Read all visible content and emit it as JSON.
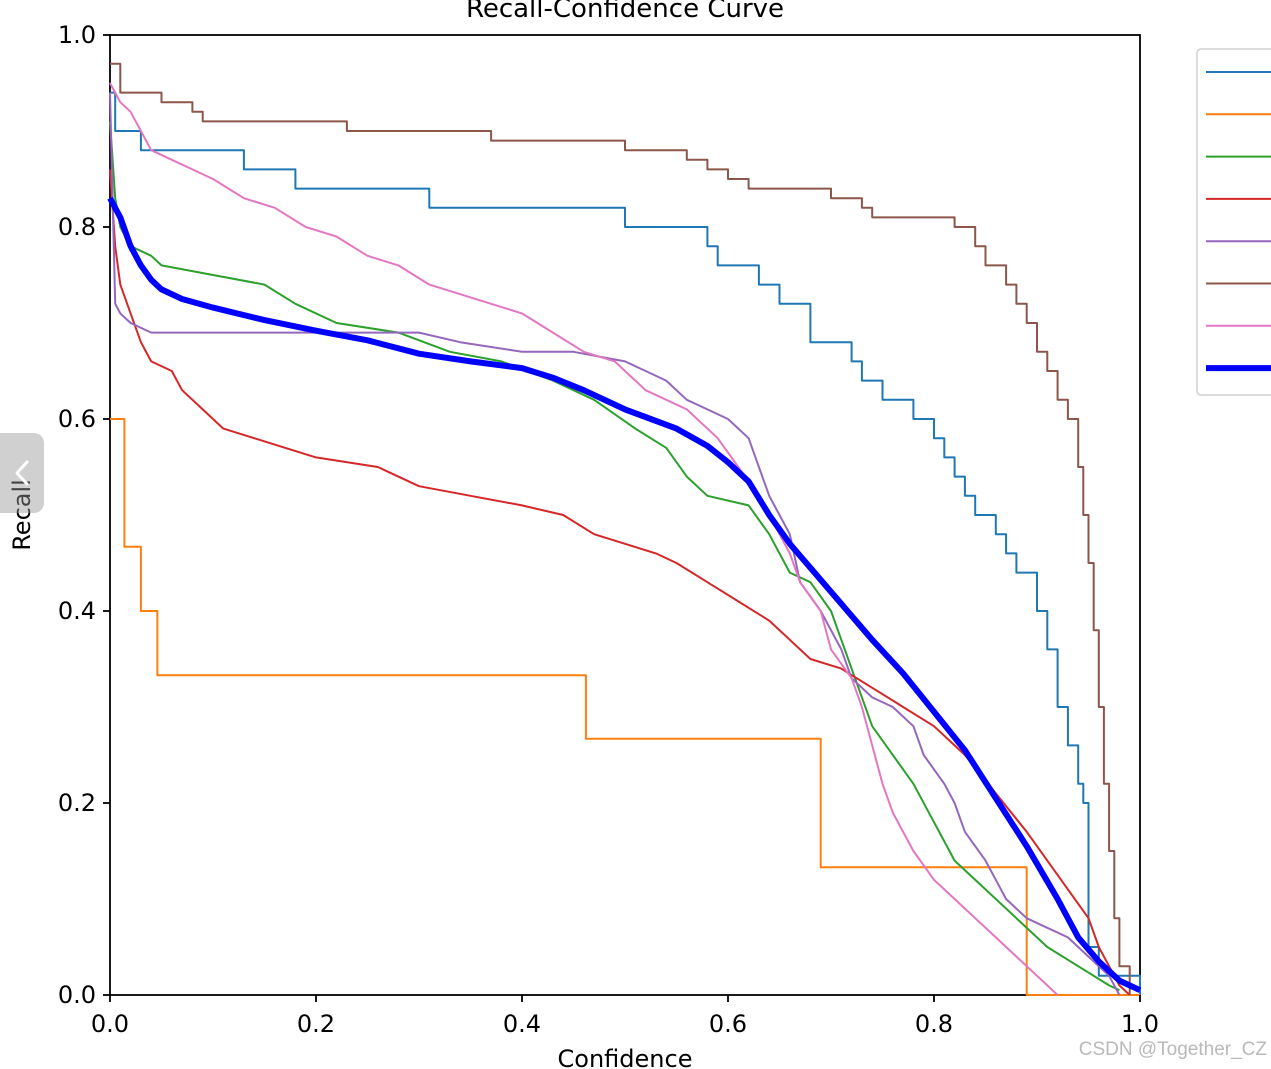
{
  "chart_data": {
    "type": "line",
    "title": "Recall-Confidence Curve",
    "xlabel": "Confidence",
    "ylabel": "Recall",
    "xlim": [
      0,
      1
    ],
    "ylim": [
      0,
      1
    ],
    "xticks": [
      "0.0",
      "0.2",
      "0.4",
      "0.6",
      "0.8",
      "1.0"
    ],
    "yticks": [
      "0.0",
      "0.2",
      "0.4",
      "0.6",
      "0.8",
      "1.0"
    ],
    "grid": false,
    "legend_location": "upper right (clipped, labels not visible)",
    "series": [
      {
        "color": "#1f77b4",
        "width": 2,
        "step": true,
        "points": [
          [
            0,
            0.94
          ],
          [
            0.005,
            0.9
          ],
          [
            0.03,
            0.88
          ],
          [
            0.13,
            0.86
          ],
          [
            0.18,
            0.84
          ],
          [
            0.31,
            0.82
          ],
          [
            0.5,
            0.8
          ],
          [
            0.58,
            0.78
          ],
          [
            0.59,
            0.76
          ],
          [
            0.63,
            0.74
          ],
          [
            0.65,
            0.72
          ],
          [
            0.68,
            0.68
          ],
          [
            0.72,
            0.66
          ],
          [
            0.73,
            0.64
          ],
          [
            0.75,
            0.62
          ],
          [
            0.78,
            0.6
          ],
          [
            0.8,
            0.58
          ],
          [
            0.81,
            0.56
          ],
          [
            0.82,
            0.54
          ],
          [
            0.83,
            0.52
          ],
          [
            0.84,
            0.5
          ],
          [
            0.86,
            0.48
          ],
          [
            0.87,
            0.46
          ],
          [
            0.88,
            0.44
          ],
          [
            0.9,
            0.4
          ],
          [
            0.91,
            0.36
          ],
          [
            0.92,
            0.3
          ],
          [
            0.93,
            0.26
          ],
          [
            0.94,
            0.22
          ],
          [
            0.945,
            0.2
          ],
          [
            0.95,
            0.12
          ],
          [
            0.95,
            0.05
          ],
          [
            0.96,
            0.02
          ],
          [
            1.0,
            0.0
          ]
        ]
      },
      {
        "color": "#ff7f0e",
        "width": 2,
        "step": true,
        "points": [
          [
            0,
            0.6
          ],
          [
            0.014,
            0.467
          ],
          [
            0.03,
            0.4
          ],
          [
            0.046,
            0.333
          ],
          [
            0.444,
            0.333
          ],
          [
            0.462,
            0.267
          ],
          [
            0.63,
            0.267
          ],
          [
            0.69,
            0.133
          ],
          [
            0.85,
            0.133
          ],
          [
            0.89,
            0.067
          ],
          [
            0.89,
            0.0
          ],
          [
            1.0,
            0.0
          ]
        ]
      },
      {
        "color": "#2ca02c",
        "width": 2,
        "step": false,
        "points": [
          [
            0,
            0.91
          ],
          [
            0.005,
            0.83
          ],
          [
            0.01,
            0.8
          ],
          [
            0.02,
            0.78
          ],
          [
            0.04,
            0.77
          ],
          [
            0.05,
            0.76
          ],
          [
            0.1,
            0.75
          ],
          [
            0.15,
            0.74
          ],
          [
            0.18,
            0.72
          ],
          [
            0.22,
            0.7
          ],
          [
            0.28,
            0.69
          ],
          [
            0.33,
            0.67
          ],
          [
            0.38,
            0.66
          ],
          [
            0.43,
            0.64
          ],
          [
            0.47,
            0.62
          ],
          [
            0.51,
            0.59
          ],
          [
            0.54,
            0.57
          ],
          [
            0.56,
            0.54
          ],
          [
            0.58,
            0.52
          ],
          [
            0.62,
            0.51
          ],
          [
            0.64,
            0.48
          ],
          [
            0.66,
            0.44
          ],
          [
            0.68,
            0.43
          ],
          [
            0.7,
            0.4
          ],
          [
            0.72,
            0.34
          ],
          [
            0.74,
            0.28
          ],
          [
            0.76,
            0.25
          ],
          [
            0.78,
            0.22
          ],
          [
            0.8,
            0.18
          ],
          [
            0.82,
            0.14
          ],
          [
            0.85,
            0.11
          ],
          [
            0.88,
            0.08
          ],
          [
            0.91,
            0.05
          ],
          [
            0.94,
            0.03
          ],
          [
            0.97,
            0.01
          ],
          [
            0.98,
            0.005
          ]
        ]
      },
      {
        "color": "#d62728",
        "width": 2,
        "step": false,
        "points": [
          [
            0,
            0.86
          ],
          [
            0.005,
            0.78
          ],
          [
            0.01,
            0.74
          ],
          [
            0.02,
            0.71
          ],
          [
            0.03,
            0.68
          ],
          [
            0.04,
            0.66
          ],
          [
            0.06,
            0.65
          ],
          [
            0.07,
            0.63
          ],
          [
            0.09,
            0.61
          ],
          [
            0.11,
            0.59
          ],
          [
            0.14,
            0.58
          ],
          [
            0.17,
            0.57
          ],
          [
            0.2,
            0.56
          ],
          [
            0.26,
            0.55
          ],
          [
            0.3,
            0.53
          ],
          [
            0.35,
            0.52
          ],
          [
            0.4,
            0.51
          ],
          [
            0.44,
            0.5
          ],
          [
            0.47,
            0.48
          ],
          [
            0.5,
            0.47
          ],
          [
            0.53,
            0.46
          ],
          [
            0.55,
            0.45
          ],
          [
            0.58,
            0.43
          ],
          [
            0.61,
            0.41
          ],
          [
            0.64,
            0.39
          ],
          [
            0.66,
            0.37
          ],
          [
            0.68,
            0.35
          ],
          [
            0.71,
            0.34
          ],
          [
            0.74,
            0.32
          ],
          [
            0.77,
            0.3
          ],
          [
            0.8,
            0.28
          ],
          [
            0.83,
            0.25
          ],
          [
            0.86,
            0.21
          ],
          [
            0.89,
            0.17
          ],
          [
            0.91,
            0.14
          ],
          [
            0.93,
            0.11
          ],
          [
            0.95,
            0.08
          ],
          [
            0.96,
            0.05
          ],
          [
            0.97,
            0.03
          ],
          [
            0.98,
            0.01
          ],
          [
            0.99,
            0.0
          ]
        ]
      },
      {
        "color": "#9467bd",
        "width": 2,
        "step": false,
        "points": [
          [
            0,
            0.94
          ],
          [
            0.005,
            0.72
          ],
          [
            0.01,
            0.71
          ],
          [
            0.02,
            0.7
          ],
          [
            0.04,
            0.69
          ],
          [
            0.3,
            0.69
          ],
          [
            0.34,
            0.68
          ],
          [
            0.4,
            0.67
          ],
          [
            0.45,
            0.67
          ],
          [
            0.5,
            0.66
          ],
          [
            0.52,
            0.65
          ],
          [
            0.54,
            0.64
          ],
          [
            0.56,
            0.62
          ],
          [
            0.58,
            0.61
          ],
          [
            0.6,
            0.6
          ],
          [
            0.62,
            0.58
          ],
          [
            0.63,
            0.55
          ],
          [
            0.64,
            0.52
          ],
          [
            0.66,
            0.48
          ],
          [
            0.67,
            0.43
          ],
          [
            0.69,
            0.4
          ],
          [
            0.71,
            0.36
          ],
          [
            0.72,
            0.33
          ],
          [
            0.74,
            0.31
          ],
          [
            0.76,
            0.3
          ],
          [
            0.78,
            0.28
          ],
          [
            0.79,
            0.25
          ],
          [
            0.81,
            0.22
          ],
          [
            0.82,
            0.2
          ],
          [
            0.83,
            0.17
          ],
          [
            0.85,
            0.14
          ],
          [
            0.86,
            0.12
          ],
          [
            0.87,
            0.1
          ],
          [
            0.89,
            0.08
          ],
          [
            0.91,
            0.07
          ],
          [
            0.93,
            0.06
          ],
          [
            0.95,
            0.04
          ],
          [
            0.97,
            0.02
          ],
          [
            0.98,
            0.0
          ]
        ]
      },
      {
        "color": "#8c564b",
        "width": 2,
        "step": true,
        "points": [
          [
            0,
            0.97
          ],
          [
            0.01,
            0.94
          ],
          [
            0.05,
            0.93
          ],
          [
            0.08,
            0.92
          ],
          [
            0.09,
            0.91
          ],
          [
            0.23,
            0.9
          ],
          [
            0.37,
            0.89
          ],
          [
            0.5,
            0.88
          ],
          [
            0.56,
            0.87
          ],
          [
            0.58,
            0.86
          ],
          [
            0.6,
            0.85
          ],
          [
            0.62,
            0.84
          ],
          [
            0.7,
            0.83
          ],
          [
            0.73,
            0.82
          ],
          [
            0.74,
            0.81
          ],
          [
            0.82,
            0.8
          ],
          [
            0.84,
            0.78
          ],
          [
            0.85,
            0.76
          ],
          [
            0.87,
            0.74
          ],
          [
            0.88,
            0.72
          ],
          [
            0.89,
            0.7
          ],
          [
            0.9,
            0.67
          ],
          [
            0.91,
            0.65
          ],
          [
            0.92,
            0.62
          ],
          [
            0.93,
            0.6
          ],
          [
            0.94,
            0.55
          ],
          [
            0.945,
            0.5
          ],
          [
            0.95,
            0.45
          ],
          [
            0.955,
            0.38
          ],
          [
            0.96,
            0.3
          ],
          [
            0.965,
            0.22
          ],
          [
            0.97,
            0.15
          ],
          [
            0.975,
            0.08
          ],
          [
            0.98,
            0.03
          ],
          [
            0.99,
            0.0
          ]
        ]
      },
      {
        "color": "#e377c2",
        "width": 2,
        "step": false,
        "points": [
          [
            0,
            0.95
          ],
          [
            0.01,
            0.93
          ],
          [
            0.02,
            0.92
          ],
          [
            0.03,
            0.9
          ],
          [
            0.04,
            0.88
          ],
          [
            0.06,
            0.87
          ],
          [
            0.08,
            0.86
          ],
          [
            0.1,
            0.85
          ],
          [
            0.13,
            0.83
          ],
          [
            0.16,
            0.82
          ],
          [
            0.19,
            0.8
          ],
          [
            0.22,
            0.79
          ],
          [
            0.25,
            0.77
          ],
          [
            0.28,
            0.76
          ],
          [
            0.31,
            0.74
          ],
          [
            0.34,
            0.73
          ],
          [
            0.37,
            0.72
          ],
          [
            0.4,
            0.71
          ],
          [
            0.43,
            0.69
          ],
          [
            0.46,
            0.67
          ],
          [
            0.49,
            0.66
          ],
          [
            0.52,
            0.63
          ],
          [
            0.56,
            0.61
          ],
          [
            0.59,
            0.58
          ],
          [
            0.61,
            0.55
          ],
          [
            0.63,
            0.52
          ],
          [
            0.65,
            0.48
          ],
          [
            0.66,
            0.46
          ],
          [
            0.67,
            0.43
          ],
          [
            0.69,
            0.4
          ],
          [
            0.7,
            0.36
          ],
          [
            0.72,
            0.33
          ],
          [
            0.73,
            0.3
          ],
          [
            0.74,
            0.26
          ],
          [
            0.75,
            0.22
          ],
          [
            0.76,
            0.19
          ],
          [
            0.78,
            0.15
          ],
          [
            0.8,
            0.12
          ],
          [
            0.82,
            0.1
          ],
          [
            0.84,
            0.08
          ],
          [
            0.86,
            0.06
          ],
          [
            0.88,
            0.04
          ],
          [
            0.9,
            0.02
          ],
          [
            0.91,
            0.01
          ],
          [
            0.92,
            0.0
          ]
        ]
      },
      {
        "color": "#0000ff",
        "width": 6,
        "step": false,
        "points": [
          [
            0,
            0.83
          ],
          [
            0.01,
            0.81
          ],
          [
            0.02,
            0.78
          ],
          [
            0.03,
            0.76
          ],
          [
            0.04,
            0.745
          ],
          [
            0.05,
            0.735
          ],
          [
            0.07,
            0.725
          ],
          [
            0.1,
            0.716
          ],
          [
            0.15,
            0.703
          ],
          [
            0.2,
            0.692
          ],
          [
            0.25,
            0.682
          ],
          [
            0.3,
            0.668
          ],
          [
            0.35,
            0.66
          ],
          [
            0.4,
            0.653
          ],
          [
            0.43,
            0.643
          ],
          [
            0.46,
            0.63
          ],
          [
            0.5,
            0.61
          ],
          [
            0.55,
            0.59
          ],
          [
            0.58,
            0.572
          ],
          [
            0.6,
            0.555
          ],
          [
            0.62,
            0.535
          ],
          [
            0.64,
            0.5
          ],
          [
            0.66,
            0.47
          ],
          [
            0.68,
            0.445
          ],
          [
            0.7,
            0.42
          ],
          [
            0.72,
            0.395
          ],
          [
            0.74,
            0.37
          ],
          [
            0.77,
            0.335
          ],
          [
            0.8,
            0.295
          ],
          [
            0.83,
            0.255
          ],
          [
            0.86,
            0.205
          ],
          [
            0.89,
            0.155
          ],
          [
            0.92,
            0.1
          ],
          [
            0.94,
            0.06
          ],
          [
            0.96,
            0.035
          ],
          [
            0.98,
            0.015
          ],
          [
            1.0,
            0.005
          ]
        ]
      }
    ]
  },
  "watermark": "CSDN @Together_CZ"
}
